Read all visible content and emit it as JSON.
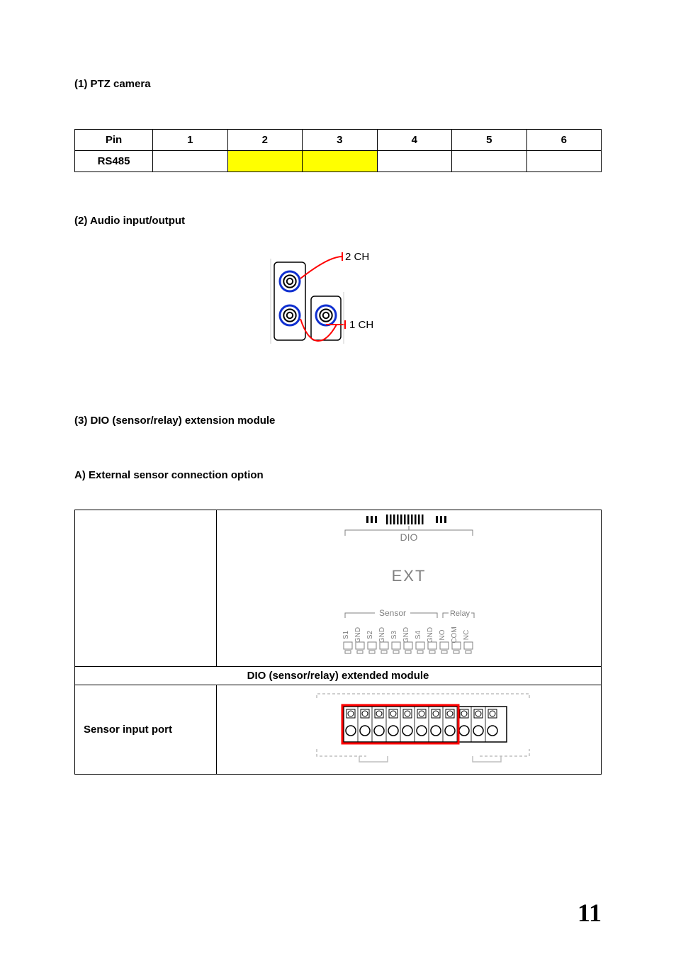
{
  "page_number": "11",
  "section1": {
    "title": "(1) PTZ camera",
    "table": {
      "row1": [
        "Pin",
        "1",
        "2",
        "3",
        "4",
        "5",
        "6"
      ],
      "row2_head": "RS485",
      "highlight_cols": [
        2,
        3
      ]
    }
  },
  "section2": {
    "title": "(2) Audio input/output",
    "label_top": "2 CH",
    "label_bottom": "1 CH",
    "colors": {
      "jack_outline": "#1030d0",
      "callout": "#ff0000",
      "panel_stroke": "#000000",
      "bg": "#ffffff"
    }
  },
  "section3": {
    "title": "(3) DIO (sensor/relay) extension module",
    "subA": "A) External sensor connection option",
    "module_label": "DIO (sensor/relay) extended module",
    "sensor_row_label": "Sensor input port",
    "dio_text": "DIO",
    "ext_text": "EXT",
    "sensor_text": "Sensor",
    "relay_text": "Relay",
    "pin_labels": [
      "S1",
      "GND",
      "S2",
      "GND",
      "S3",
      "GND",
      "S4",
      "GND",
      "NO",
      "COM",
      "NC"
    ],
    "colors": {
      "stroke": "#000000",
      "text_gray": "#808080",
      "highlight": "#ff0000",
      "light": "#bfbfbf"
    }
  }
}
